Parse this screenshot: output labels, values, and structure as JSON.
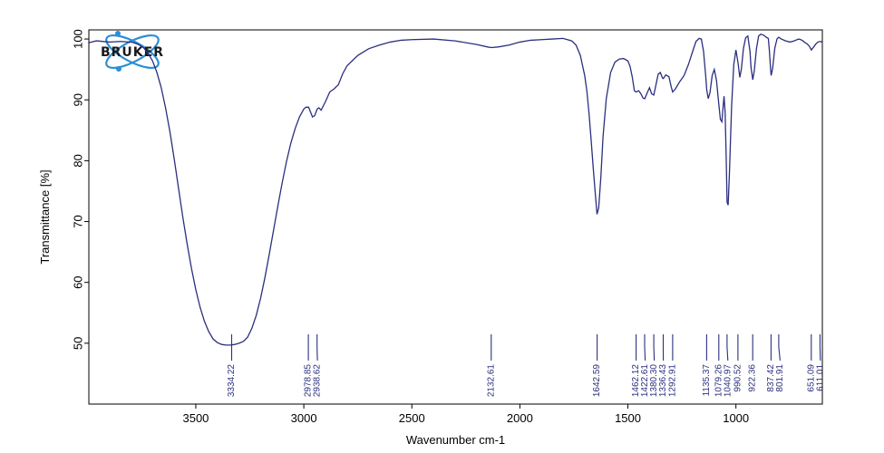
{
  "chart_data": {
    "type": "line",
    "title": "",
    "xlabel": "Wavenumber cm-1",
    "ylabel": "Transmittance [%]",
    "xlim": [
      3995,
      600
    ],
    "ylim": [
      40,
      101.5
    ],
    "x_reversed": true,
    "x_ticks": [
      3500,
      3000,
      2500,
      2000,
      1500,
      1000
    ],
    "x_tick_labels": [
      "3500",
      "3000",
      "2500",
      "2000",
      "1500",
      "1000"
    ],
    "y_ticks": [
      50,
      60,
      70,
      80,
      90,
      100
    ],
    "y_tick_labels": [
      "50",
      "60",
      "70",
      "80",
      "90",
      "100"
    ],
    "grid": false,
    "line_color": "#2b2f7e",
    "label_color": "#2b2f7e",
    "logo": {
      "text": "BRUKER",
      "ring_color": "#2a8fd6",
      "text_color": "#1a1a1a"
    },
    "series": [
      {
        "x": [
          3995,
          3960,
          3900,
          3850,
          3800,
          3780,
          3760,
          3740,
          3720,
          3700,
          3680,
          3660,
          3640,
          3620,
          3600,
          3580,
          3560,
          3540,
          3520,
          3500,
          3480,
          3460,
          3440,
          3420,
          3400,
          3380,
          3360,
          3340,
          3320,
          3300,
          3280,
          3260,
          3240,
          3220,
          3200,
          3180,
          3160,
          3140,
          3120,
          3100,
          3080,
          3060,
          3040,
          3020,
          3000,
          2990,
          2978,
          2970,
          2960,
          2950,
          2938,
          2930,
          2920,
          2900,
          2880,
          2860,
          2840,
          2820,
          2800,
          2750,
          2700,
          2650,
          2600,
          2550,
          2500,
          2400,
          2300,
          2200,
          2150,
          2132,
          2100,
          2050,
          2000,
          1950,
          1900,
          1850,
          1800,
          1760,
          1740,
          1720,
          1700,
          1690,
          1680,
          1670,
          1660,
          1650,
          1643,
          1635,
          1625,
          1615,
          1600,
          1580,
          1560,
          1540,
          1520,
          1500,
          1490,
          1480,
          1470,
          1462,
          1450,
          1440,
          1430,
          1422,
          1410,
          1400,
          1390,
          1380,
          1370,
          1360,
          1350,
          1340,
          1336,
          1325,
          1310,
          1300,
          1293,
          1280,
          1260,
          1240,
          1220,
          1200,
          1185,
          1170,
          1160,
          1150,
          1140,
          1135,
          1128,
          1120,
          1110,
          1100,
          1090,
          1079,
          1072,
          1065,
          1060,
          1055,
          1050,
          1045,
          1041,
          1036,
          1030,
          1020,
          1010,
          1000,
          990,
          982,
          975,
          965,
          955,
          945,
          935,
          930,
          922,
          915,
          905,
          895,
          885,
          870,
          860,
          850,
          845,
          840,
          837,
          830,
          820,
          810,
          802,
          790,
          770,
          750,
          730,
          710,
          700,
          690,
          680,
          670,
          660,
          651,
          640,
          630,
          620,
          611,
          600
        ],
        "y": [
          99.4,
          99.7,
          99.5,
          99.6,
          99.5,
          99.3,
          99.0,
          98.5,
          97.6,
          96.4,
          94.5,
          92.0,
          88.7,
          84.8,
          80.3,
          75.5,
          70.7,
          66.3,
          62.3,
          58.8,
          55.9,
          53.6,
          51.9,
          50.7,
          50.1,
          49.8,
          49.7,
          49.7,
          49.8,
          50.0,
          50.3,
          51.0,
          52.5,
          54.6,
          57.4,
          60.8,
          64.6,
          68.6,
          72.6,
          76.4,
          79.9,
          82.9,
          85.3,
          87.2,
          88.5,
          88.8,
          88.8,
          88.1,
          87.2,
          87.4,
          88.5,
          88.7,
          88.3,
          89.7,
          91.3,
          91.8,
          92.5,
          94.3,
          95.6,
          97.3,
          98.4,
          99.0,
          99.5,
          99.8,
          99.9,
          100.0,
          99.7,
          99.1,
          98.7,
          98.6,
          98.7,
          99.0,
          99.5,
          99.8,
          99.9,
          100.0,
          100.1,
          99.7,
          99.0,
          97.3,
          94.0,
          91.5,
          87.8,
          83.3,
          78.6,
          74.2,
          71.2,
          72.3,
          77.4,
          84.0,
          90.2,
          94.5,
          96.2,
          96.7,
          96.8,
          96.4,
          95.5,
          93.8,
          91.5,
          91.3,
          91.5,
          91.0,
          90.3,
          90.2,
          91.2,
          92.0,
          91.0,
          90.8,
          92.5,
          94.2,
          94.5,
          93.6,
          93.5,
          94.1,
          93.8,
          92.2,
          91.3,
          91.8,
          93.0,
          94.0,
          95.8,
          98.0,
          99.6,
          100.1,
          100.0,
          98.0,
          94.0,
          91.6,
          90.2,
          91.2,
          94.0,
          95.0,
          93.2,
          89.2,
          86.8,
          86.4,
          88.6,
          90.6,
          88.0,
          80.5,
          73.2,
          72.7,
          78.0,
          89.0,
          95.8,
          98.2,
          96.0,
          93.7,
          95.0,
          98.5,
          100.2,
          100.5,
          98.0,
          95.3,
          93.3,
          94.8,
          98.4,
          100.5,
          100.8,
          100.6,
          100.3,
          100.1,
          98.0,
          95.3,
          94.0,
          95.2,
          98.5,
          100.0,
          100.3,
          100.0,
          99.7,
          99.5,
          99.7,
          100.0,
          99.9,
          99.7,
          99.4,
          99.2,
          98.8,
          98.2,
          98.7,
          99.2,
          99.5,
          99.6,
          99.5
        ]
      }
    ],
    "peaks": [
      {
        "x": 3334.22,
        "label": "3334.22"
      },
      {
        "x": 2978.85,
        "label": "2978.85"
      },
      {
        "x": 2938.62,
        "label": "2938.62"
      },
      {
        "x": 2132.61,
        "label": "2132.61"
      },
      {
        "x": 1642.59,
        "label": "1642.59"
      },
      {
        "x": 1462.12,
        "label": "1462.12"
      },
      {
        "x": 1422.61,
        "label": "1422.61"
      },
      {
        "x": 1380.3,
        "label": "1380.30"
      },
      {
        "x": 1336.43,
        "label": "1336.43"
      },
      {
        "x": 1292.91,
        "label": "1292.91"
      },
      {
        "x": 1135.37,
        "label": "1135.37"
      },
      {
        "x": 1079.26,
        "label": "1079.26"
      },
      {
        "x": 1040.97,
        "label": "1040.97"
      },
      {
        "x": 990.52,
        "label": "990.52"
      },
      {
        "x": 922.36,
        "label": "922.36"
      },
      {
        "x": 837.42,
        "label": "837.42"
      },
      {
        "x": 801.91,
        "label": "801.91"
      },
      {
        "x": 651.09,
        "label": "651.09"
      },
      {
        "x": 611.01,
        "label": "611.01"
      }
    ]
  }
}
